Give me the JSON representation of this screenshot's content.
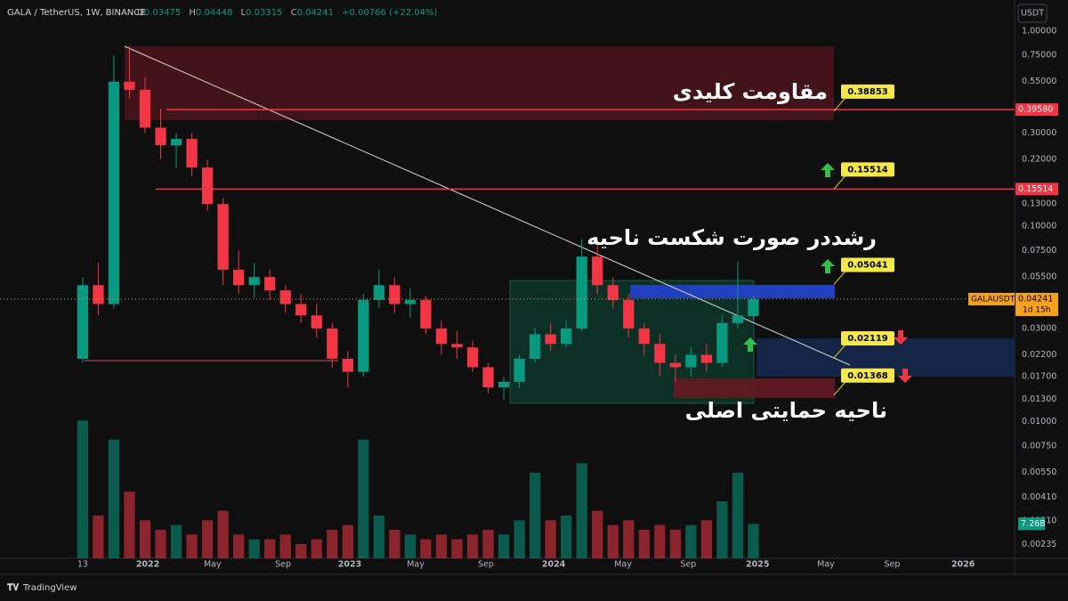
{
  "header": {
    "symbol": "GALA / TetherUS, 1W, BINANCE",
    "ohlc": [
      {
        "key": "O",
        "value": "0.03475"
      },
      {
        "key": "H",
        "value": "0.04448"
      },
      {
        "key": "L",
        "value": "0.03315"
      },
      {
        "key": "C",
        "value": "0.04241"
      }
    ],
    "change": "+0.00766 (+22.04%)",
    "currency": "USDT"
  },
  "chart_data": {
    "type": "candlestick",
    "x": [
      0,
      4,
      8,
      12,
      16,
      20,
      24,
      28,
      32,
      36,
      40,
      44,
      48,
      52,
      56,
      60,
      64,
      68,
      72,
      76,
      80,
      84,
      88,
      92,
      96,
      100,
      104,
      108,
      112,
      116,
      120,
      124,
      128,
      132,
      136,
      140,
      144,
      148,
      152,
      156,
      160,
      164,
      168,
      172
    ],
    "open": [
      0.021,
      0.05,
      0.04,
      0.55,
      0.5,
      0.32,
      0.26,
      0.28,
      0.2,
      0.13,
      0.06,
      0.05,
      0.055,
      0.047,
      0.04,
      0.035,
      0.03,
      0.021,
      0.018,
      0.042,
      0.05,
      0.04,
      0.042,
      0.03,
      0.025,
      0.024,
      0.019,
      0.015,
      0.016,
      0.021,
      0.028,
      0.025,
      0.03,
      0.07,
      0.05,
      0.042,
      0.03,
      0.025,
      0.02,
      0.019,
      0.022,
      0.02,
      0.032,
      0.03475
    ],
    "high": [
      0.055,
      0.065,
      0.75,
      0.83,
      0.58,
      0.4,
      0.3,
      0.3,
      0.22,
      0.14,
      0.075,
      0.065,
      0.06,
      0.05,
      0.045,
      0.04,
      0.032,
      0.023,
      0.045,
      0.06,
      0.055,
      0.048,
      0.044,
      0.033,
      0.029,
      0.026,
      0.02,
      0.017,
      0.022,
      0.03,
      0.032,
      0.033,
      0.086,
      0.08,
      0.055,
      0.045,
      0.032,
      0.028,
      0.022,
      0.024,
      0.025,
      0.035,
      0.066,
      0.04448
    ],
    "low": [
      0.02,
      0.035,
      0.038,
      0.45,
      0.3,
      0.22,
      0.2,
      0.18,
      0.12,
      0.05,
      0.045,
      0.043,
      0.042,
      0.036,
      0.032,
      0.027,
      0.019,
      0.015,
      0.017,
      0.038,
      0.036,
      0.034,
      0.028,
      0.022,
      0.021,
      0.018,
      0.014,
      0.013,
      0.015,
      0.02,
      0.023,
      0.024,
      0.029,
      0.045,
      0.038,
      0.027,
      0.022,
      0.017,
      0.016,
      0.017,
      0.018,
      0.019,
      0.03,
      0.03315
    ],
    "close": [
      0.05,
      0.04,
      0.55,
      0.5,
      0.32,
      0.26,
      0.28,
      0.2,
      0.13,
      0.06,
      0.05,
      0.055,
      0.047,
      0.04,
      0.035,
      0.03,
      0.021,
      0.018,
      0.042,
      0.05,
      0.04,
      0.042,
      0.03,
      0.025,
      0.024,
      0.019,
      0.015,
      0.016,
      0.021,
      0.028,
      0.025,
      0.03,
      0.07,
      0.05,
      0.042,
      0.03,
      0.025,
      0.02,
      0.019,
      0.022,
      0.02,
      0.032,
      0.035,
      0.04241
    ],
    "up_color": "#089981",
    "down_color": "#f23645",
    "volume": {
      "values": [
        29,
        9,
        25,
        14,
        8,
        6,
        7,
        5,
        8,
        10,
        5,
        4,
        4,
        5,
        3,
        4,
        6,
        7,
        25,
        9,
        6,
        5,
        4,
        5,
        4,
        5,
        6,
        5,
        8,
        18,
        8,
        9,
        20,
        10,
        7,
        8,
        6,
        7,
        6,
        7,
        8,
        12,
        18,
        7.26
      ],
      "ylim": [
        0,
        30
      ],
      "last_label": "7.26B"
    },
    "xlim": [
      -21.2,
      239
    ],
    "xticks": [
      {
        "value": 0,
        "label": "13"
      },
      {
        "value": 16.7,
        "label": "2022"
      },
      {
        "value": 33.3,
        "label": "May"
      },
      {
        "value": 51.4,
        "label": "Sep"
      },
      {
        "value": 68.5,
        "label": "2023"
      },
      {
        "value": 85.4,
        "label": "May"
      },
      {
        "value": 103.4,
        "label": "Sep"
      },
      {
        "value": 120.8,
        "label": "2024"
      },
      {
        "value": 138.6,
        "label": "May"
      },
      {
        "value": 155.3,
        "label": "Sep"
      },
      {
        "value": 173.1,
        "label": "2025"
      },
      {
        "value": 190.6,
        "label": "May"
      },
      {
        "value": 207.6,
        "label": "Sep"
      },
      {
        "value": 225.8,
        "label": "2026"
      }
    ],
    "ylim": [
      0.002,
      1.44
    ],
    "log_y": true,
    "grid": false,
    "yticks": [
      {
        "value": 1,
        "label": "1.00000"
      },
      {
        "value": 0.75,
        "label": "0.75000"
      },
      {
        "value": 0.55,
        "label": "0.55000"
      },
      {
        "value": 0.3,
        "label": "0.30000"
      },
      {
        "value": 0.22,
        "label": "0.22000"
      },
      {
        "value": 0.13,
        "label": "0.13000"
      },
      {
        "value": 0.1,
        "label": "0.10000"
      },
      {
        "value": 0.075,
        "label": "0.07500"
      },
      {
        "value": 0.055,
        "label": "0.05500"
      },
      {
        "value": 0.03,
        "label": "0.03000"
      },
      {
        "value": 0.022,
        "label": "0.02200"
      },
      {
        "value": 0.017,
        "label": "0.01700"
      },
      {
        "value": 0.013,
        "label": "0.01300"
      },
      {
        "value": 0.01,
        "label": "0.01000"
      },
      {
        "value": 0.0075,
        "label": "0.00750"
      },
      {
        "value": 0.0055,
        "label": "0.00550"
      },
      {
        "value": 0.0041,
        "label": "0.00410"
      },
      {
        "value": 0.0031,
        "label": "0.00310"
      },
      {
        "value": 0.00235,
        "label": "0.00235"
      }
    ],
    "levels": [
      {
        "value": 0.3958,
        "label": "0.39580"
      },
      0.15514
    ],
    "callouts": [
      0.38853,
      0.15514,
      0.05041,
      0.02119,
      0.01368
    ],
    "current_symbol": "GALAUSDT",
    "countdown": "1d 15h",
    "annotations": [
      "مقاومت کلیدی",
      "رشددر صورت شکست ناحیه",
      "ناحیه حمایتی اصلی"
    ]
  },
  "footer": {
    "brand": "TradingView"
  }
}
